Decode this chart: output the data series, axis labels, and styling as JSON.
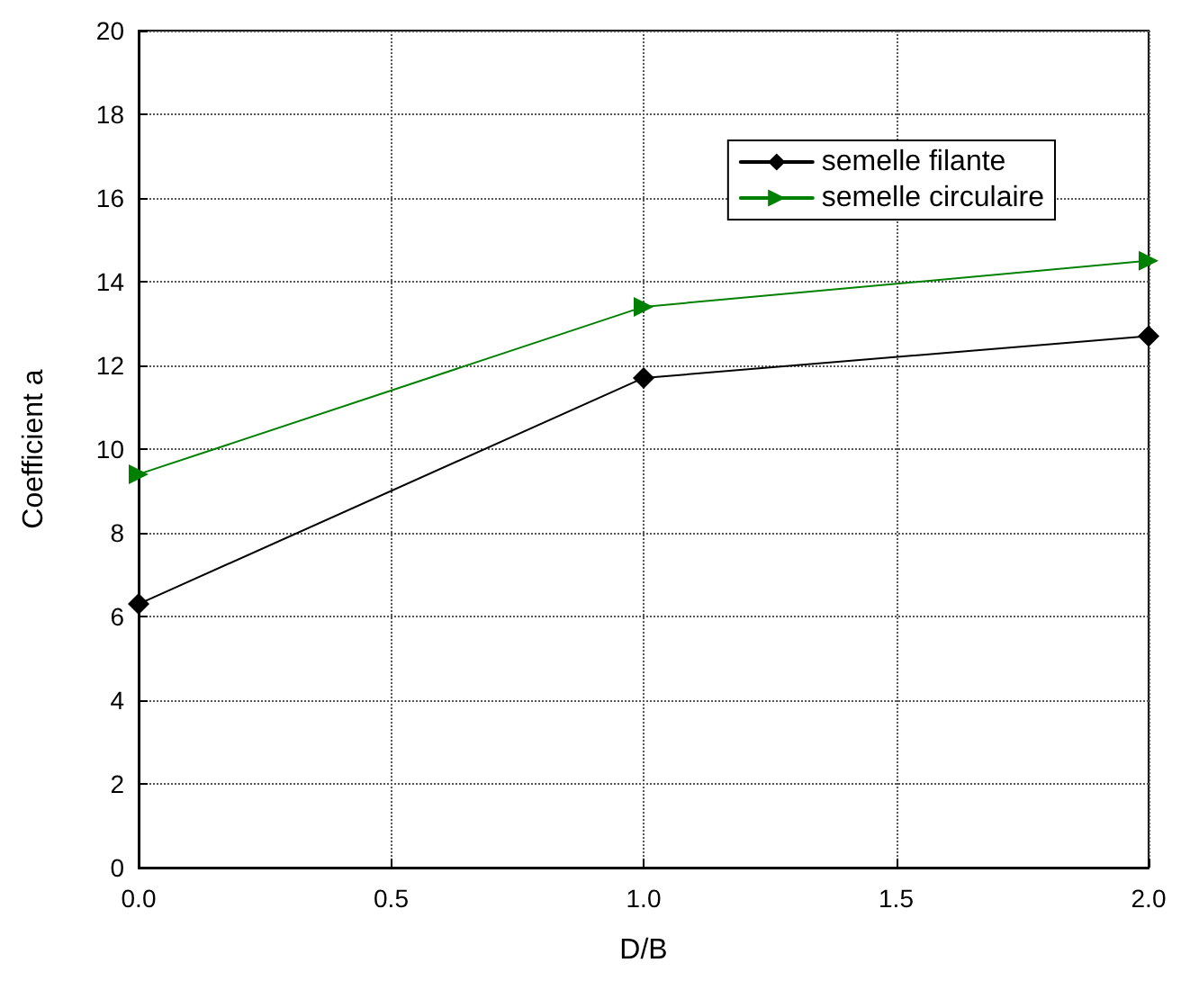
{
  "chart_data": {
    "type": "line",
    "xlabel": "D/B",
    "ylabel": "Coefficient a",
    "x": [
      0,
      1,
      2
    ],
    "series": [
      {
        "name": "semelle filante",
        "color": "#000000",
        "marker": "diamond",
        "values": [
          6.3,
          11.7,
          12.7
        ]
      },
      {
        "name": "semelle circulaire",
        "color": "#008000",
        "marker": "triangle",
        "values": [
          9.4,
          13.4,
          14.5
        ]
      }
    ],
    "xlim": [
      0,
      2
    ],
    "xticks": [
      {
        "value": 0,
        "label": "0.0"
      },
      {
        "value": 0.5,
        "label": "0.5"
      },
      {
        "value": 1,
        "label": "1.0"
      },
      {
        "value": 1.5,
        "label": "1.5"
      },
      {
        "value": 2,
        "label": "2.0"
      }
    ],
    "ylim": [
      0,
      20
    ],
    "yticks": [
      0,
      2,
      4,
      6,
      8,
      10,
      12,
      14,
      16,
      18,
      20
    ],
    "grid": true,
    "legend": "top right",
    "line_style": "solid"
  }
}
